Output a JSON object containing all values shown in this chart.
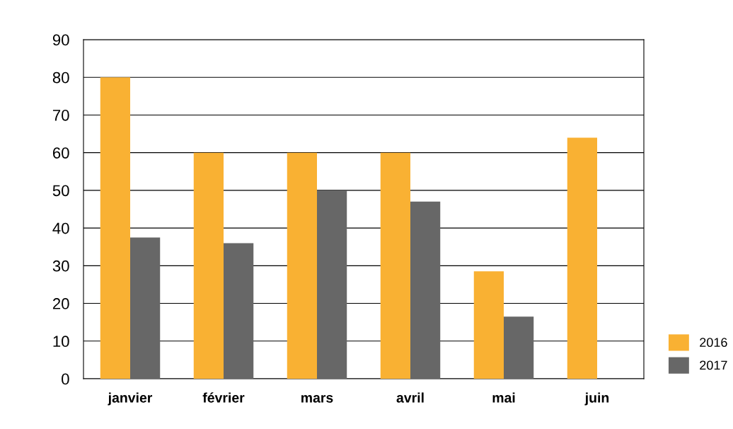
{
  "chart_data": {
    "type": "bar",
    "categories": [
      "janvier",
      "février",
      "mars",
      "avril",
      "mai",
      "juin"
    ],
    "series": [
      {
        "name": "2016",
        "color": "#f9b133",
        "values": [
          80,
          60,
          60,
          60,
          28.5,
          64
        ]
      },
      {
        "name": "2017",
        "color": "#676767",
        "values": [
          37.5,
          36,
          50,
          47,
          16.5,
          null
        ]
      }
    ],
    "ylim": [
      0,
      90
    ],
    "yticks": [
      0,
      10,
      20,
      30,
      40,
      50,
      60,
      70,
      80,
      90
    ],
    "grid": "y",
    "legend": "bottom right"
  }
}
